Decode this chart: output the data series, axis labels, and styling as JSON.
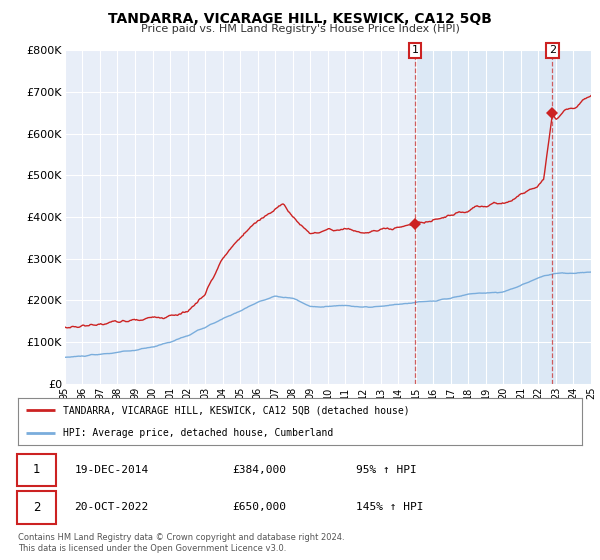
{
  "title": "TANDARRA, VICARAGE HILL, KESWICK, CA12 5QB",
  "subtitle": "Price paid vs. HM Land Registry's House Price Index (HPI)",
  "ylim": [
    0,
    800000
  ],
  "yticks": [
    0,
    100000,
    200000,
    300000,
    400000,
    500000,
    600000,
    700000,
    800000
  ],
  "ytick_labels": [
    "£0",
    "£100K",
    "£200K",
    "£300K",
    "£400K",
    "£500K",
    "£600K",
    "£700K",
    "£800K"
  ],
  "hpi_color": "#7aaddc",
  "hpi_fill_color": "#d0e4f7",
  "price_color": "#cc2222",
  "bg_color": "#e8eef8",
  "marker1_date": 2014.96,
  "marker1_price": 384000,
  "marker2_date": 2022.8,
  "marker2_price": 650000,
  "vline_color": "#cc4444",
  "legend_line1": "TANDARRA, VICARAGE HILL, KESWICK, CA12 5QB (detached house)",
  "legend_line2": "HPI: Average price, detached house, Cumberland",
  "annotation1_date": "19-DEC-2014",
  "annotation1_price": "£384,000",
  "annotation1_hpi": "95% ↑ HPI",
  "annotation2_date": "20-OCT-2022",
  "annotation2_price": "£650,000",
  "annotation2_hpi": "145% ↑ HPI",
  "footer": "Contains HM Land Registry data © Crown copyright and database right 2024.\nThis data is licensed under the Open Government Licence v3.0.",
  "grid_color": "#ffffff",
  "shade_color": "#dce8f5"
}
